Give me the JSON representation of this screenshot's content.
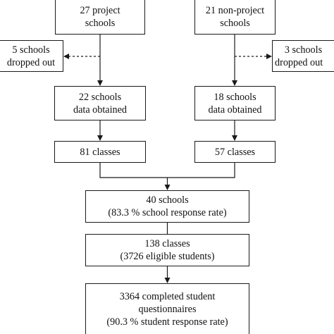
{
  "flowchart": {
    "project_column": {
      "schools": [
        "27 project",
        "schools"
      ],
      "dropped": [
        "5 schools",
        "dropped out"
      ],
      "obtained": [
        "22 schools",
        "data obtained"
      ],
      "classes": [
        "81 classes"
      ]
    },
    "nonproject_column": {
      "schools": [
        "21 non-project",
        "schools"
      ],
      "dropped": [
        "3 schools",
        "dropped out"
      ],
      "obtained": [
        "18 schools",
        "data obtained"
      ],
      "classes": [
        "57 classes"
      ]
    },
    "combined": {
      "schools": [
        "40 schools",
        "(83.3 % school response rate)"
      ],
      "classes": [
        "138 classes",
        "(3726 eligible students)"
      ],
      "questionnaires": [
        "3364 completed student",
        "questionnaires",
        "(90.3 % student response rate)"
      ]
    }
  }
}
